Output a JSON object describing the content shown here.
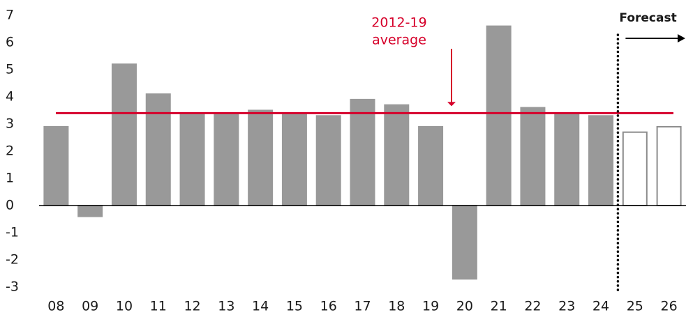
{
  "chart_data": {
    "type": "bar",
    "categories": [
      "08",
      "09",
      "10",
      "11",
      "12",
      "13",
      "14",
      "15",
      "16",
      "17",
      "18",
      "19",
      "20",
      "21",
      "22",
      "23",
      "24",
      "25",
      "26"
    ],
    "values": [
      2.9,
      -0.4,
      5.2,
      4.1,
      3.4,
      3.4,
      3.5,
      3.4,
      3.3,
      3.9,
      3.7,
      2.9,
      -2.7,
      6.6,
      3.6,
      3.4,
      3.3,
      2.7,
      2.9
    ],
    "colors": [
      "#999999",
      "#999999",
      "#999999",
      "#999999",
      "#999999",
      "#999999",
      "#999999",
      "#999999",
      "#999999",
      "#999999",
      "#999999",
      "#999999",
      "#999999",
      "#999999",
      "#999999",
      "#999999",
      "#999999",
      "#ffffff",
      "#ffffff"
    ],
    "edgecolors": [
      "#999999",
      "#999999",
      "#999999",
      "#999999",
      "#999999",
      "#999999",
      "#999999",
      "#999999",
      "#999999",
      "#999999",
      "#999999",
      "#999999",
      "#999999",
      "#999999",
      "#999999",
      "#999999",
      "#999999",
      "#8c8c8c",
      "#8c8c8c"
    ],
    "ylim": [
      -3,
      7
    ],
    "yticks": [
      -3,
      -2,
      -1,
      0,
      1,
      2,
      3,
      4,
      5,
      6,
      7
    ],
    "grid": false,
    "reference_line": {
      "value": 3.4,
      "color": "#d6002a",
      "label": [
        "2012-19",
        "average"
      ]
    },
    "forecast_label": "Forecast"
  }
}
